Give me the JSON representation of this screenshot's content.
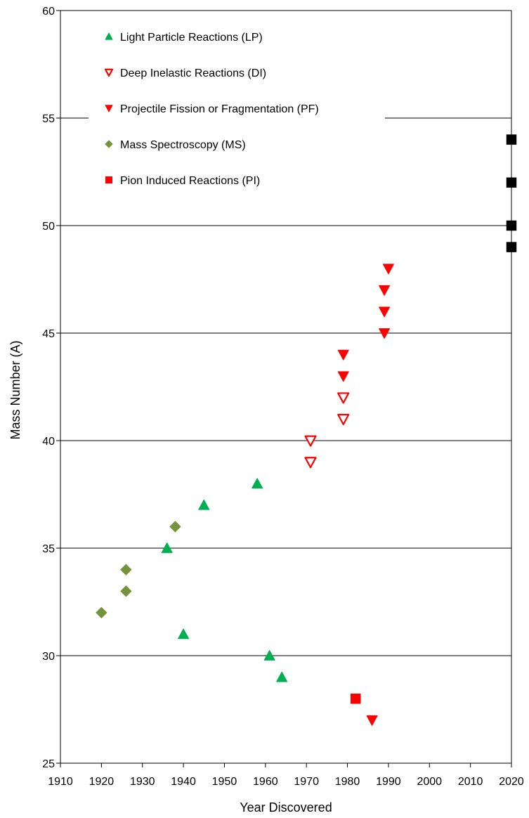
{
  "chart_data": {
    "type": "scatter",
    "title": "",
    "xlabel": "Year Discovered",
    "ylabel": "Mass Number (A)",
    "xlim": [
      1910,
      2020
    ],
    "ylim": [
      25,
      60
    ],
    "x_ticks": [
      1910,
      1920,
      1930,
      1940,
      1950,
      1960,
      1970,
      1980,
      1990,
      2000,
      2010,
      2020
    ],
    "y_ticks": [
      25,
      30,
      35,
      40,
      45,
      50,
      55,
      60
    ],
    "grid": "horizontal major gridlines",
    "legend_position": "top-left",
    "series": [
      {
        "name": "Light Particle Reactions (LP)",
        "marker": "triangle-up",
        "filled": true,
        "color": "#00b050",
        "points": [
          [
            1936,
            35
          ],
          [
            1940,
            31
          ],
          [
            1945,
            37
          ],
          [
            1958,
            38
          ],
          [
            1961,
            30
          ],
          [
            1964,
            29
          ]
        ]
      },
      {
        "name": "Deep Inelastic Reactions (DI)",
        "marker": "triangle-down",
        "filled": false,
        "color": "#ff0000",
        "points": [
          [
            1971,
            39
          ],
          [
            1971,
            40
          ],
          [
            1979,
            41
          ],
          [
            1979,
            42
          ]
        ]
      },
      {
        "name": "Projectile Fission or Fragmentation (PF)",
        "marker": "triangle-down",
        "filled": true,
        "color": "#ff0000",
        "points": [
          [
            1979,
            43
          ],
          [
            1979,
            44
          ],
          [
            1986,
            27
          ],
          [
            1989,
            45
          ],
          [
            1989,
            46
          ],
          [
            1989,
            47
          ],
          [
            1990,
            48
          ]
        ]
      },
      {
        "name": "Mass Spectroscopy (MS)",
        "marker": "diamond",
        "filled": true,
        "color": "#76933c",
        "points": [
          [
            1920,
            32
          ],
          [
            1926,
            33
          ],
          [
            1926,
            34
          ],
          [
            1938,
            36
          ]
        ]
      },
      {
        "name": "Pion Induced Reactions (PI)",
        "marker": "square",
        "filled": true,
        "color": "#ff0000",
        "points": [
          [
            1982,
            28
          ]
        ]
      },
      {
        "name": "",
        "marker": "square",
        "filled": true,
        "color": "#000000",
        "points": [
          [
            2020,
            49
          ],
          [
            2020,
            50
          ],
          [
            2020,
            52
          ],
          [
            2020,
            54
          ]
        ]
      }
    ]
  }
}
